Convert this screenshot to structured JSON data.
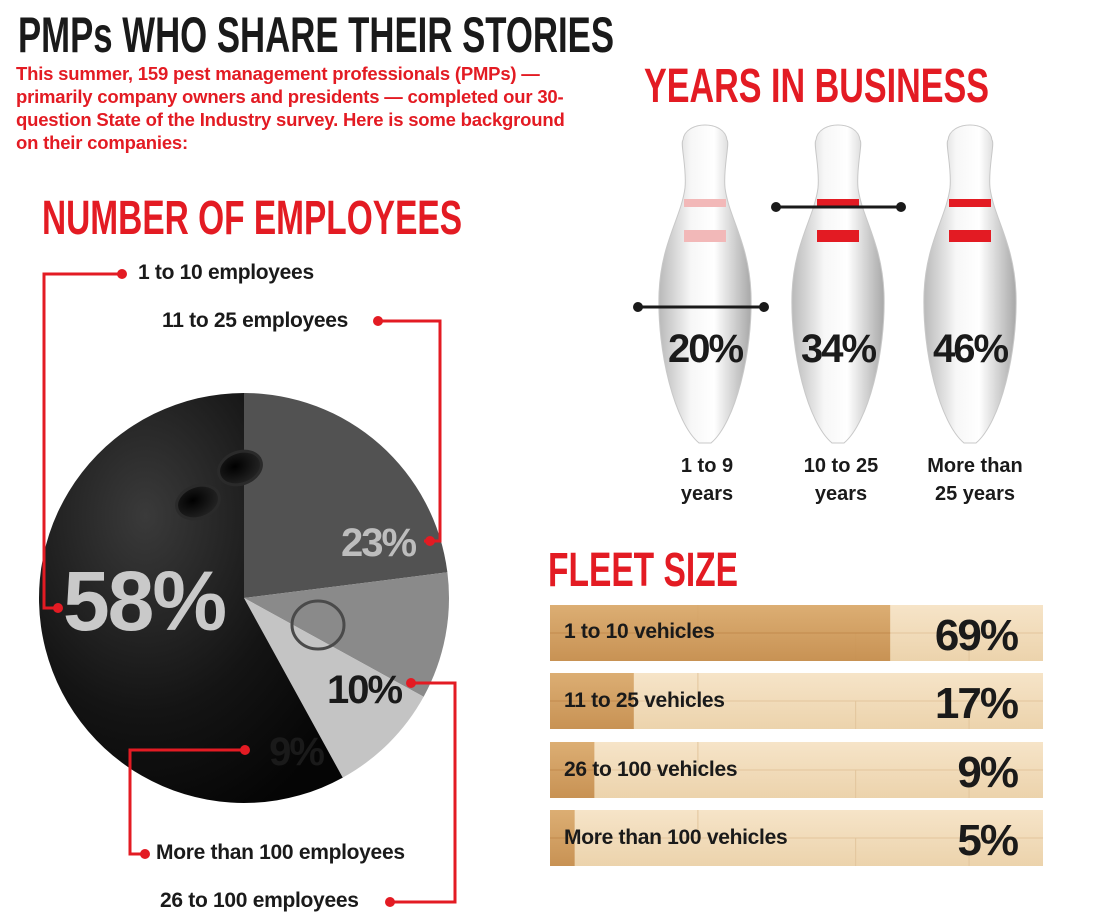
{
  "title": "PMPs WHO SHARE THEIR STORIES",
  "intro": "This summer, 159 pest management professionals (PMPs) — primarily company owners and presidents — completed our 30-question State of the Industry survey. Here is some background on their companies:",
  "colors": {
    "accent": "#e31b23",
    "text": "#1a1a1a"
  },
  "chart_data": [
    {
      "type": "pie",
      "title": "NUMBER OF EMPLOYEES",
      "categories": [
        "1 to 10 employees",
        "11 to 25 employees",
        "26 to 100 employees",
        "More than 100 employees"
      ],
      "values": [
        58,
        23,
        10,
        9
      ],
      "value_labels": [
        "58%",
        "23%",
        "10%",
        "9%"
      ]
    },
    {
      "type": "bar",
      "title": "YEARS IN BUSINESS",
      "categories": [
        "1 to 9 years",
        "10 to 25 years",
        "More than 25 years"
      ],
      "values": [
        20,
        34,
        46
      ],
      "value_labels": [
        "20%",
        "34%",
        "46%"
      ]
    },
    {
      "type": "bar",
      "title": "FLEET SIZE",
      "categories": [
        "1 to 10 vehicles",
        "11 to 25 vehicles",
        "26 to 100 vehicles",
        "More than 100 vehicles"
      ],
      "values": [
        69,
        17,
        9,
        5
      ],
      "value_labels": [
        "69%",
        "17%",
        "9%",
        "5%"
      ]
    }
  ],
  "labels": {
    "emp": [
      "1 to 10 employees",
      "11 to 25 employees",
      "26 to 100 employees",
      "More than 100 employees"
    ],
    "years_line1": [
      "1 to 9",
      "10 to 25",
      "More than"
    ],
    "years_line2": [
      "years",
      "years",
      "25 years"
    ]
  }
}
